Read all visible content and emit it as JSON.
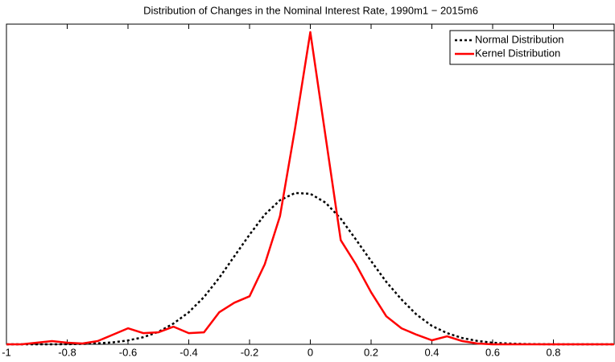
{
  "chart_data": {
    "type": "line",
    "title": "Distribution of Changes in the Nominal Interest Rate, 1990m1 − 2015m6",
    "x": [
      -1,
      -0.95,
      -0.9,
      -0.85,
      -0.8,
      -0.75,
      -0.7,
      -0.65,
      -0.6,
      -0.55,
      -0.5,
      -0.45,
      -0.4,
      -0.35,
      -0.3,
      -0.25,
      -0.2,
      -0.15,
      -0.1,
      -0.05,
      0,
      0.05,
      0.1,
      0.15,
      0.2,
      0.25,
      0.3,
      0.35,
      0.4,
      0.45,
      0.5,
      0.55,
      0.6,
      0.65,
      0.7,
      0.75,
      0.8,
      0.85,
      0.9,
      0.95,
      1
    ],
    "series": [
      {
        "name": "Normal Distribution",
        "color": "#000000",
        "dash": "dotted",
        "values": [
          0,
          0,
          0,
          0,
          0.001,
          0.005,
          0.012,
          0.024,
          0.048,
          0.088,
          0.156,
          0.26,
          0.4,
          0.59,
          0.83,
          1.1,
          1.37,
          1.62,
          1.8,
          1.89,
          1.88,
          1.77,
          1.57,
          1.31,
          1.04,
          0.78,
          0.56,
          0.37,
          0.23,
          0.14,
          0.078,
          0.042,
          0.02,
          0.01,
          0.004,
          0.002,
          0,
          0,
          0,
          0,
          0
        ]
      },
      {
        "name": "Kernel Distribution",
        "color": "#ff0000",
        "dash": "solid",
        "values": [
          0,
          0,
          0.02,
          0.04,
          0.02,
          0.01,
          0.04,
          0.12,
          0.2,
          0.14,
          0.15,
          0.22,
          0.14,
          0.15,
          0.4,
          0.52,
          0.6,
          1.0,
          1.6,
          2.7,
          3.9,
          2.6,
          1.3,
          1.0,
          0.65,
          0.35,
          0.2,
          0.12,
          0.05,
          0.1,
          0.04,
          0.01,
          0,
          0,
          0,
          0,
          0,
          0,
          0,
          0,
          0
        ]
      }
    ],
    "xlim": [
      -1,
      1
    ],
    "xticks": [
      -1,
      -0.8,
      -0.6,
      -0.4,
      -0.2,
      0,
      0.2,
      0.4,
      0.6,
      0.8
    ],
    "ylim": [
      0,
      4
    ],
    "grid": false,
    "legend": "top-right"
  }
}
